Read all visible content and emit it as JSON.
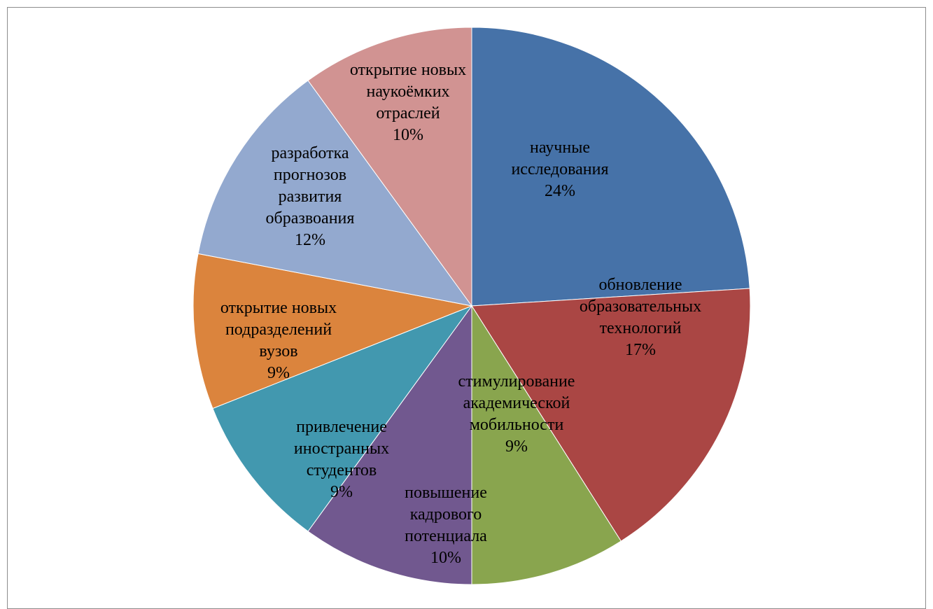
{
  "chart_data": {
    "type": "pie",
    "title": "",
    "start_angle_deg": 0,
    "direction": "clockwise",
    "slices": [
      {
        "label": "научные исследования",
        "label_lines": [
          "научные",
          "исследования"
        ],
        "pct_label": "24%",
        "value": 24,
        "color": "#4672A8"
      },
      {
        "label": "обновление образовательных технологий",
        "label_lines": [
          "обновление",
          "образовательных",
          "технологий"
        ],
        "pct_label": "17%",
        "value": 17,
        "color": "#AA4644"
      },
      {
        "label": "стимулирование академической мобильности",
        "label_lines": [
          "стимулирование",
          "академической",
          "мобильности"
        ],
        "pct_label": "9%",
        "value": 9,
        "color": "#89A54E"
      },
      {
        "label": "повышение кадрового потенциала",
        "label_lines": [
          "повышение",
          "кадрового",
          "потенциала"
        ],
        "pct_label": "10%",
        "value": 10,
        "color": "#71588F"
      },
      {
        "label": "привлечение иностранных студентов",
        "label_lines": [
          "привлечение",
          "иностранных",
          "студентов"
        ],
        "pct_label": "9%",
        "value": 9,
        "color": "#4298AF"
      },
      {
        "label": "открытие новых подразделений вузов",
        "label_lines": [
          "открытие новых",
          "подразделений",
          "вузов"
        ],
        "pct_label": "9%",
        "value": 9,
        "color": "#DB843D"
      },
      {
        "label": "разработка прогнозов развития образвоания",
        "label_lines": [
          "разработка",
          "прогнозов",
          "развития",
          "образвоания"
        ],
        "pct_label": "12%",
        "value": 12,
        "color": "#93A9CF"
      },
      {
        "label": "открытие новых наукоёмких отраслей",
        "label_lines": [
          "открытие новых",
          "наукоёмких",
          "отраслей"
        ],
        "pct_label": "10%",
        "value": 10,
        "color": "#D19392"
      }
    ]
  }
}
